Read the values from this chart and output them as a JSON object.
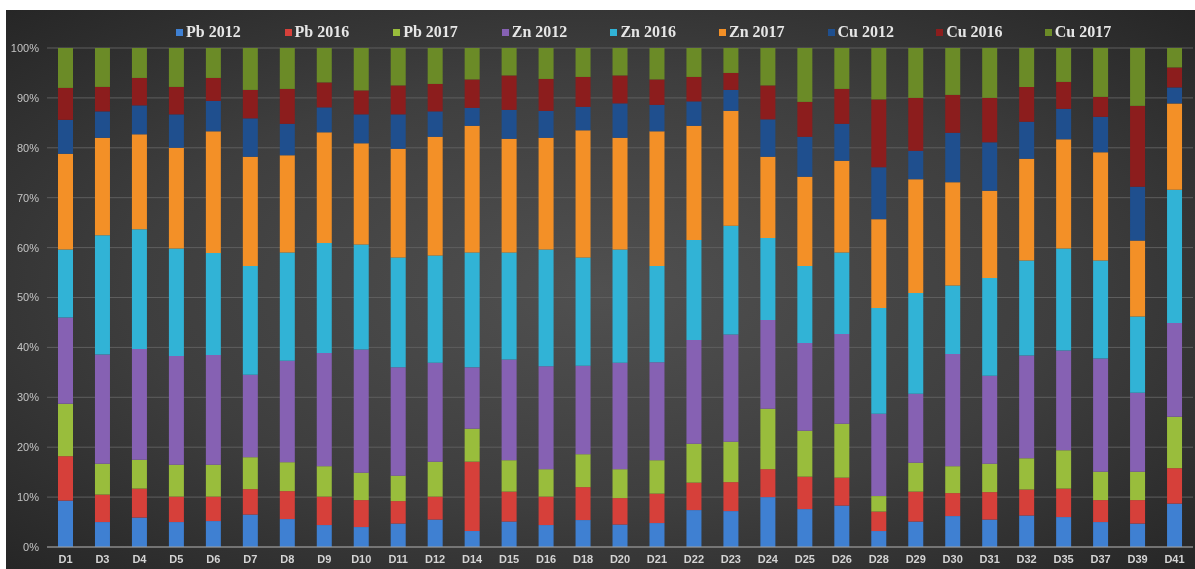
{
  "chart_data": {
    "type": "bar",
    "stacked": true,
    "categories": [
      "D1",
      "D3",
      "D4",
      "D5",
      "D6",
      "D7",
      "D8",
      "D9",
      "D10",
      "D11",
      "D12",
      "D14",
      "D15",
      "D16",
      "D18",
      "D20",
      "D21",
      "D22",
      "D23",
      "D24",
      "D25",
      "D26",
      "D28",
      "D29",
      "D30",
      "D31",
      "D32",
      "D35",
      "D37",
      "D39",
      "D41"
    ],
    "series": [
      {
        "name": "Pb 2012",
        "color": "#3f80d2",
        "values": [
          9.3,
          5.0,
          5.9,
          5.0,
          5.2,
          6.5,
          5.6,
          4.4,
          4.0,
          4.7,
          5.5,
          3.2,
          5.1,
          4.4,
          5.4,
          4.5,
          4.8,
          7.4,
          7.2,
          10.0,
          7.6,
          8.3,
          3.2,
          5.1,
          6.2,
          5.5,
          6.3,
          6.0,
          5.0,
          4.7,
          8.7
        ]
      },
      {
        "name": "Pb 2016",
        "color": "#d6403a",
        "values": [
          8.9,
          5.5,
          5.8,
          5.1,
          4.9,
          5.1,
          5.6,
          5.7,
          5.4,
          4.5,
          4.6,
          13.9,
          6.0,
          5.7,
          6.6,
          5.3,
          5.9,
          5.5,
          5.8,
          5.6,
          6.5,
          5.6,
          3.9,
          6.0,
          4.6,
          5.5,
          5.2,
          5.7,
          4.4,
          4.7,
          7.1
        ]
      },
      {
        "name": "Pb 2017",
        "color": "#99bd3c",
        "values": [
          10.5,
          6.2,
          5.8,
          6.4,
          6.4,
          6.4,
          5.8,
          6.1,
          5.5,
          5.1,
          7.0,
          6.6,
          6.3,
          5.5,
          6.6,
          5.8,
          6.7,
          7.8,
          8.1,
          12.1,
          9.2,
          10.8,
          3.1,
          5.8,
          5.4,
          5.7,
          6.3,
          7.7,
          5.7,
          5.7,
          10.3
        ]
      },
      {
        "name": "Zn 2012",
        "color": "#8661b3",
        "values": [
          17.3,
          21.9,
          22.2,
          21.8,
          22.0,
          16.5,
          20.3,
          22.7,
          24.7,
          21.7,
          19.8,
          12.3,
          20.2,
          20.6,
          17.7,
          21.3,
          19.6,
          20.8,
          21.5,
          17.8,
          17.6,
          18.0,
          16.5,
          13.8,
          22.5,
          17.6,
          20.6,
          20.0,
          22.7,
          15.8,
          18.8
        ]
      },
      {
        "name": "Zn 2016",
        "color": "#31b3d6",
        "values": [
          13.6,
          23.9,
          24.0,
          21.5,
          20.4,
          21.8,
          21.7,
          22.0,
          21.0,
          22.0,
          21.5,
          23.0,
          21.4,
          23.4,
          21.7,
          22.7,
          19.3,
          20.0,
          21.8,
          16.4,
          15.4,
          16.3,
          21.2,
          20.2,
          13.7,
          19.6,
          19.0,
          20.4,
          19.6,
          15.3,
          26.7
        ]
      },
      {
        "name": "Zn 2017",
        "color": "#f39027",
        "values": [
          19.2,
          19.5,
          19.0,
          20.2,
          24.4,
          21.9,
          19.5,
          22.2,
          20.3,
          21.8,
          23.8,
          25.4,
          22.8,
          22.4,
          25.5,
          22.4,
          27.0,
          22.9,
          23.0,
          16.3,
          17.9,
          18.4,
          17.8,
          22.8,
          20.7,
          17.5,
          20.4,
          21.9,
          21.7,
          15.2,
          17.3
        ]
      },
      {
        "name": "Cu 2012",
        "color": "#1f4f8e",
        "values": [
          6.8,
          5.3,
          5.8,
          6.7,
          6.1,
          7.7,
          6.3,
          5.0,
          5.8,
          6.9,
          5.1,
          3.6,
          5.8,
          5.4,
          4.7,
          6.9,
          5.3,
          4.9,
          4.2,
          7.5,
          8.0,
          7.4,
          10.4,
          5.7,
          9.9,
          9.7,
          7.4,
          6.1,
          7.1,
          10.8,
          3.2
        ]
      },
      {
        "name": "Cu 2016",
        "color": "#8c1d1d",
        "values": [
          6.4,
          4.9,
          5.5,
          5.5,
          4.6,
          5.7,
          7.0,
          5.0,
          4.8,
          5.8,
          5.5,
          5.7,
          6.9,
          6.4,
          6.0,
          5.6,
          5.1,
          4.9,
          3.4,
          6.8,
          7.0,
          7.0,
          13.6,
          10.6,
          7.6,
          8.9,
          7.0,
          5.4,
          4.0,
          16.2,
          4.0
        ]
      },
      {
        "name": "Cu 2017",
        "color": "#6b8b27",
        "values": [
          8.0,
          7.8,
          6.0,
          7.8,
          6.0,
          8.4,
          8.2,
          6.9,
          8.5,
          7.5,
          7.2,
          6.3,
          5.5,
          6.2,
          5.8,
          5.5,
          6.3,
          5.8,
          5.0,
          7.5,
          10.8,
          8.2,
          10.3,
          10.0,
          9.4,
          10.0,
          7.8,
          6.8,
          9.8,
          11.6,
          3.9
        ]
      }
    ],
    "ylim": [
      0,
      100
    ],
    "yticks": [
      {
        "value": 0,
        "label": "0%"
      },
      {
        "value": 10,
        "label": "10%"
      },
      {
        "value": 20,
        "label": "20%"
      },
      {
        "value": 30,
        "label": "30%"
      },
      {
        "value": 40,
        "label": "40%"
      },
      {
        "value": 50,
        "label": "50%"
      },
      {
        "value": 60,
        "label": "60%"
      },
      {
        "value": 70,
        "label": "70%"
      },
      {
        "value": 80,
        "label": "80%"
      },
      {
        "value": 90,
        "label": "90%"
      },
      {
        "value": 100,
        "label": "100%"
      }
    ],
    "grid": "y",
    "legend": "top"
  }
}
